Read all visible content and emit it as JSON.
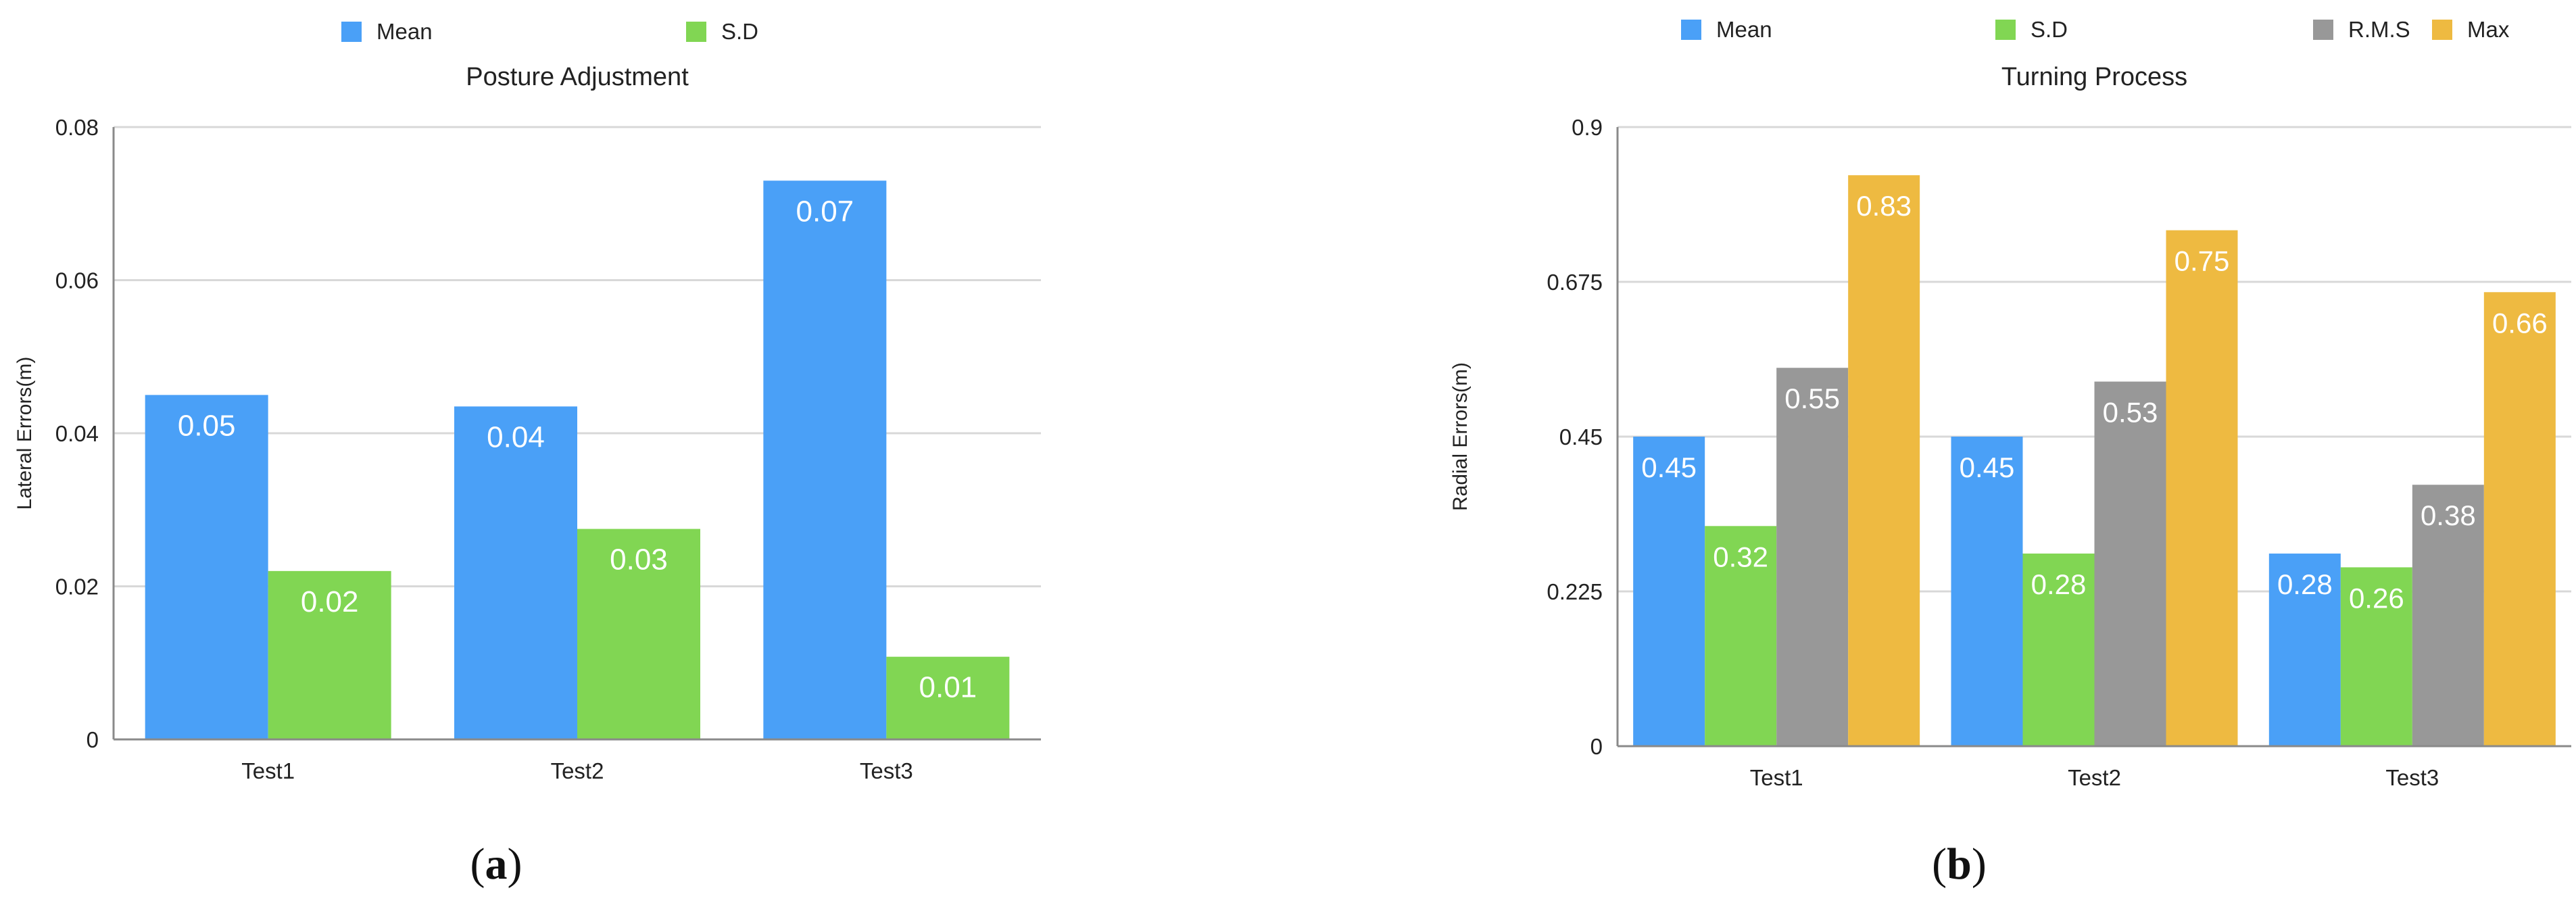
{
  "colors": {
    "Mean": "#4aa0f7",
    "S.D": "#81d653",
    "R.M.S": "#989898",
    "Max": "#eeba41",
    "axis": "#8a8a8a",
    "grid": "#d8d8d8",
    "text": "#222222",
    "bar_label": "#ffffff"
  },
  "chart_data": [
    {
      "type": "bar",
      "title": "Posture Adjustment",
      "ylabel": "Lateral Errors(m)",
      "xlabel": "",
      "categories": [
        "Test1",
        "Test2",
        "Test3"
      ],
      "ylim": [
        0,
        0.08
      ],
      "yticks": [
        0,
        0.02,
        0.04,
        0.06,
        0.08
      ],
      "ytick_labels": [
        "0",
        "0.02",
        "0.04",
        "0.06",
        "0.08"
      ],
      "grid": true,
      "legend_position": "top",
      "series": [
        {
          "name": "Mean",
          "values": [
            0.045,
            0.0435,
            0.073
          ],
          "labels": [
            "0.05",
            "0.04",
            "0.07"
          ]
        },
        {
          "name": "S.D",
          "values": [
            0.022,
            0.0275,
            0.0108
          ],
          "labels": [
            "0.02",
            "0.03",
            "0.01"
          ]
        }
      ],
      "panel_label": "(a)"
    },
    {
      "type": "bar",
      "title": "Turning Process",
      "ylabel": "Radial Errors(m)",
      "xlabel": "",
      "categories": [
        "Test1",
        "Test2",
        "Test3"
      ],
      "ylim": [
        0,
        0.9
      ],
      "yticks": [
        0,
        0.225,
        0.45,
        0.675,
        0.9
      ],
      "ytick_labels": [
        "0",
        "0.225",
        "0.45",
        "0.675",
        "0.9"
      ],
      "grid": true,
      "legend_position": "top",
      "series": [
        {
          "name": "Mean",
          "values": [
            0.45,
            0.45,
            0.28
          ],
          "labels": [
            "0.45",
            "0.45",
            "0.28"
          ]
        },
        {
          "name": "S.D",
          "values": [
            0.32,
            0.28,
            0.26
          ],
          "labels": [
            "0.32",
            "0.28",
            "0.26"
          ]
        },
        {
          "name": "R.M.S",
          "values": [
            0.55,
            0.53,
            0.38
          ],
          "labels": [
            "0.55",
            "0.53",
            "0.38"
          ]
        },
        {
          "name": "Max",
          "values": [
            0.83,
            0.75,
            0.66
          ],
          "labels": [
            "0.83",
            "0.75",
            "0.66"
          ]
        }
      ],
      "panel_label": "(b)"
    }
  ]
}
